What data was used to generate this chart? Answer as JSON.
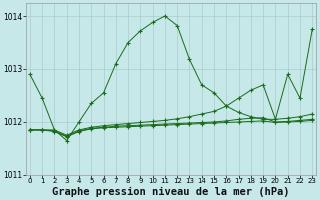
{
  "background_color": "#c6e8e8",
  "grid_color": "#aacccc",
  "line_color": "#1a6b1a",
  "marker": "+",
  "title": "Graphe pression niveau de la mer (hPa)",
  "title_fontsize": 7.5,
  "ylim": [
    1011.0,
    1014.25
  ],
  "xlim": [
    -0.3,
    23.3
  ],
  "yticks": [
    1011,
    1012,
    1013,
    1014
  ],
  "xticks": [
    0,
    1,
    2,
    3,
    4,
    5,
    6,
    7,
    8,
    9,
    10,
    11,
    12,
    13,
    14,
    15,
    16,
    17,
    18,
    19,
    20,
    21,
    22,
    23
  ],
  "series": [
    {
      "x": [
        0,
        1,
        2,
        3,
        4,
        5,
        6,
        7,
        8,
        9,
        10,
        11,
        12,
        13,
        14,
        15,
        16,
        17,
        18,
        19,
        20,
        21,
        22,
        23
      ],
      "y": [
        1012.9,
        1012.45,
        1011.85,
        1011.65,
        1012.0,
        1012.35,
        1012.55,
        1013.1,
        1013.5,
        1013.72,
        1013.88,
        1014.0,
        1013.82,
        1013.18,
        1012.7,
        1012.55,
        1012.3,
        1012.18,
        1012.1,
        1012.05,
        1012.05,
        1012.9,
        1012.45,
        1013.75
      ]
    },
    {
      "x": [
        0,
        1,
        2,
        3,
        4,
        5,
        6,
        7,
        8,
        9,
        10,
        11,
        12,
        13,
        14,
        15,
        16,
        17,
        18,
        19,
        20,
        21,
        22,
        23
      ],
      "y": [
        1011.85,
        1011.85,
        1011.85,
        1011.75,
        1011.85,
        1011.9,
        1011.93,
        1011.95,
        1011.97,
        1011.99,
        1012.01,
        1012.03,
        1012.06,
        1012.1,
        1012.15,
        1012.2,
        1012.3,
        1012.45,
        1012.6,
        1012.7,
        1012.05,
        1012.07,
        1012.1,
        1012.15
      ]
    },
    {
      "x": [
        0,
        1,
        2,
        3,
        4,
        5,
        6,
        7,
        8,
        9,
        10,
        11,
        12,
        13,
        14,
        15,
        16,
        17,
        18,
        19,
        20,
        21,
        22,
        23
      ],
      "y": [
        1011.85,
        1011.85,
        1011.83,
        1011.73,
        1011.83,
        1011.88,
        1011.9,
        1011.92,
        1011.93,
        1011.94,
        1011.95,
        1011.96,
        1011.97,
        1011.98,
        1011.99,
        1012.0,
        1012.02,
        1012.05,
        1012.07,
        1012.08,
        1012.0,
        1012.01,
        1012.03,
        1012.05
      ]
    },
    {
      "x": [
        0,
        1,
        2,
        3,
        4,
        5,
        6,
        7,
        8,
        9,
        10,
        11,
        12,
        13,
        14,
        15,
        16,
        17,
        18,
        19,
        20,
        21,
        22,
        23
      ],
      "y": [
        1011.85,
        1011.85,
        1011.82,
        1011.72,
        1011.82,
        1011.87,
        1011.89,
        1011.9,
        1011.91,
        1011.92,
        1011.93,
        1011.94,
        1011.95,
        1011.96,
        1011.97,
        1011.98,
        1011.99,
        1012.0,
        1012.01,
        1012.02,
        1011.99,
        1012.0,
        1012.01,
        1012.03
      ]
    }
  ]
}
